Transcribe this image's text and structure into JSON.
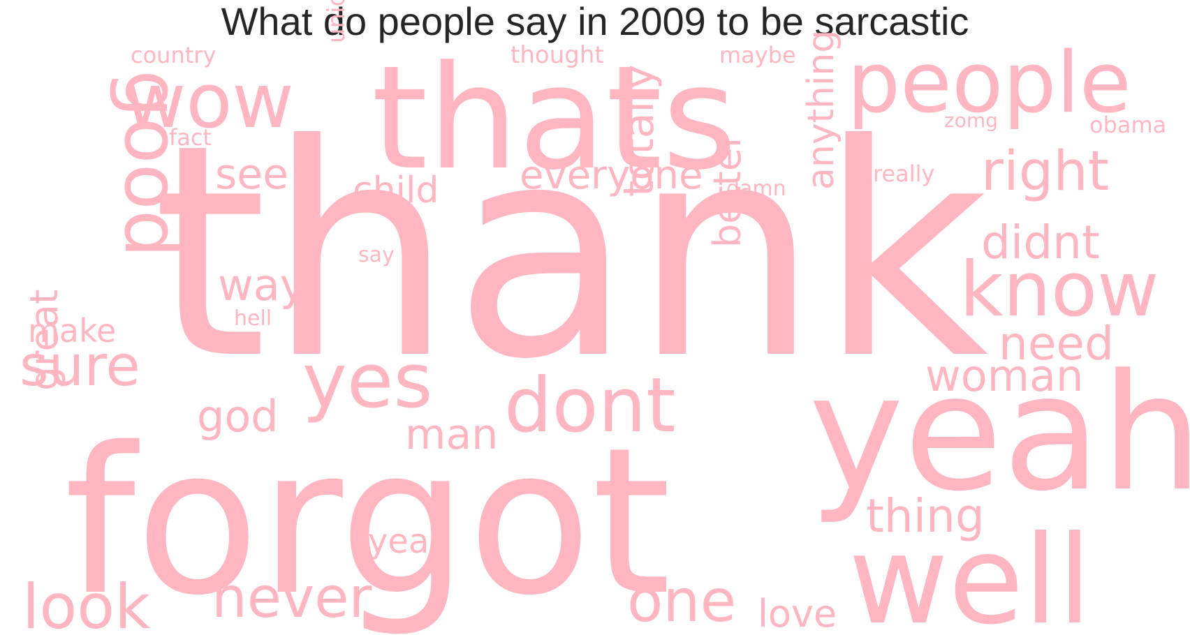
{
  "title": "What do people say in 2009 to be sarcastic",
  "word_color": "#FFB6C1",
  "words": [
    {
      "text": "thank",
      "weight": 1.0
    },
    {
      "text": "forgot",
      "weight": 0.78
    },
    {
      "text": "thats",
      "weight": 0.5
    },
    {
      "text": "yeah",
      "weight": 0.55
    },
    {
      "text": "well",
      "weight": 0.45
    },
    {
      "text": "people",
      "weight": 0.34
    },
    {
      "text": "know",
      "weight": 0.32
    },
    {
      "text": "wow",
      "weight": 0.3
    },
    {
      "text": "good",
      "weight": 0.3
    },
    {
      "text": "dont",
      "weight": 0.3
    },
    {
      "text": "yes",
      "weight": 0.3
    },
    {
      "text": "one",
      "weight": 0.24
    },
    {
      "text": "look",
      "weight": 0.24
    },
    {
      "text": "never",
      "weight": 0.22
    },
    {
      "text": "right",
      "weight": 0.2
    },
    {
      "text": "sure",
      "weight": 0.2
    },
    {
      "text": "didnt",
      "weight": 0.17
    },
    {
      "text": "thing",
      "weight": 0.17
    },
    {
      "text": "need",
      "weight": 0.17
    },
    {
      "text": "woman",
      "weight": 0.16
    },
    {
      "text": "totally",
      "weight": 0.16
    },
    {
      "text": "anything",
      "weight": 0.16
    },
    {
      "text": "better",
      "weight": 0.16
    },
    {
      "text": "way",
      "weight": 0.16
    },
    {
      "text": "great",
      "weight": 0.15
    },
    {
      "text": "everyone",
      "weight": 0.14
    },
    {
      "text": "see",
      "weight": 0.14
    },
    {
      "text": "god",
      "weight": 0.14
    },
    {
      "text": "man",
      "weight": 0.14
    },
    {
      "text": "child",
      "weight": 0.12
    },
    {
      "text": "love",
      "weight": 0.12
    },
    {
      "text": "make",
      "weight": 0.1
    },
    {
      "text": "yea",
      "weight": 0.1
    },
    {
      "text": "union",
      "weight": 0.07
    },
    {
      "text": "thought",
      "weight": 0.07
    },
    {
      "text": "country",
      "weight": 0.06
    },
    {
      "text": "maybe",
      "weight": 0.06
    },
    {
      "text": "obama",
      "weight": 0.06
    },
    {
      "text": "fact",
      "weight": 0.06
    },
    {
      "text": "really",
      "weight": 0.06
    },
    {
      "text": "zomg",
      "weight": 0.05
    },
    {
      "text": "damn",
      "weight": 0.05
    },
    {
      "text": "say",
      "weight": 0.05
    },
    {
      "text": "hell",
      "weight": 0.05
    }
  ]
}
